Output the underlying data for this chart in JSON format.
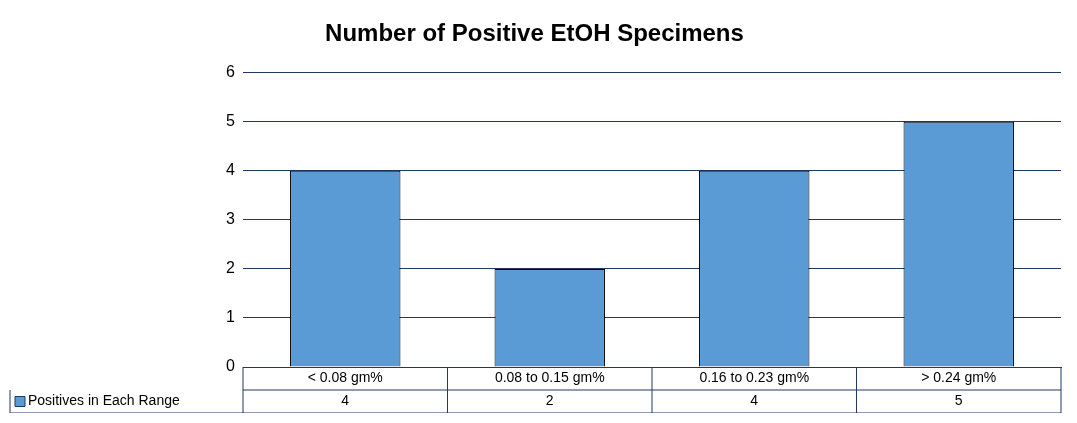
{
  "chart_data": {
    "type": "bar",
    "title": "Number of Positive EtOH Specimens",
    "categories": [
      "< 0.08 gm%",
      "0.08 to 0.15 gm%",
      "0.16 to 0.23 gm%",
      "> 0.24 gm%"
    ],
    "series": [
      {
        "name": "Positives in Each Range",
        "color": "#5b9bd5",
        "values": [
          4,
          2,
          4,
          5
        ]
      }
    ],
    "ylim": [
      0,
      6
    ],
    "yticks": [
      0,
      1,
      2,
      3,
      4,
      5,
      6
    ],
    "grid": "y",
    "legend": "bottom left",
    "data_labels": true
  }
}
